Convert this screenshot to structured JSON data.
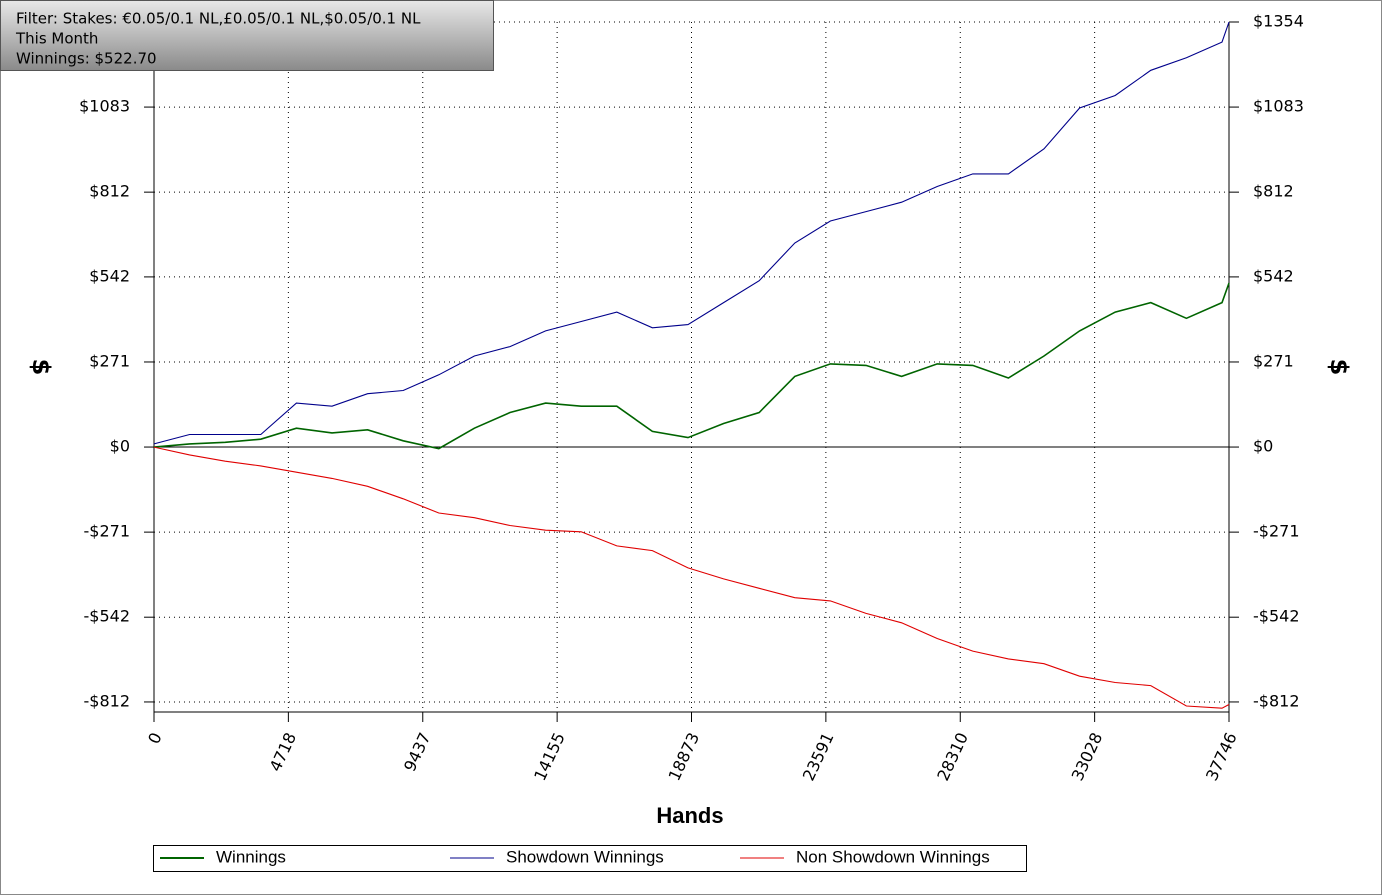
{
  "chart_data": {
    "type": "line",
    "annotations": [
      "Filter: Stakes: €0.05/0.1 NL,£0.05/0.1 NL,$0.05/0.1 NL",
      "This Month",
      "Winnings: $522.70"
    ],
    "xlabel": "Hands",
    "ylabel": "$",
    "x": [
      0,
      1250,
      2500,
      3750,
      5000,
      6250,
      7500,
      8750,
      10000,
      11250,
      12500,
      13750,
      15000,
      16250,
      17500,
      18750,
      20000,
      21250,
      22500,
      23750,
      25000,
      26250,
      27500,
      28750,
      30000,
      31250,
      32500,
      33750,
      35000,
      36250,
      37500,
      37746
    ],
    "series": [
      {
        "name": "Winnings",
        "color": "#006400",
        "values": [
          0,
          10,
          15,
          25,
          60,
          45,
          55,
          20,
          -5,
          60,
          110,
          140,
          130,
          130,
          50,
          30,
          75,
          110,
          225,
          265,
          260,
          225,
          265,
          260,
          220,
          290,
          370,
          430,
          460,
          410,
          460,
          522.7
        ]
      },
      {
        "name": "Showdown Winnings",
        "color": "#00008b",
        "values": [
          10,
          40,
          40,
          40,
          140,
          130,
          170,
          180,
          230,
          290,
          320,
          370,
          400,
          430,
          380,
          390,
          460,
          530,
          650,
          720,
          750,
          780,
          830,
          870,
          870,
          950,
          1080,
          1120,
          1200,
          1240,
          1290,
          1354
        ]
      },
      {
        "name": "Non Showdown Winnings",
        "color": "#e00000",
        "values": [
          0,
          -25,
          -45,
          -60,
          -80,
          -100,
          -125,
          -165,
          -210,
          -225,
          -250,
          -265,
          -270,
          -315,
          -330,
          -385,
          -420,
          -450,
          -480,
          -490,
          -530,
          -560,
          -610,
          -650,
          -675,
          -690,
          -730,
          -750,
          -760,
          -825,
          -832,
          -820
        ]
      }
    ],
    "xlim": [
      0,
      37746
    ],
    "xticks": [
      0,
      4718,
      9437,
      14155,
      18873,
      23591,
      28310,
      33028,
      37746
    ],
    "ylim": [
      -844,
      1354
    ],
    "yticks": [
      {
        "value": -812,
        "label": "-$812"
      },
      {
        "value": -542,
        "label": "-$542"
      },
      {
        "value": -271,
        "label": "-$271"
      },
      {
        "value": 0,
        "label": "$0"
      },
      {
        "value": 271,
        "label": "$271"
      },
      {
        "value": 542,
        "label": "$542"
      },
      {
        "value": 812,
        "label": "$812"
      },
      {
        "value": 1083,
        "label": "$1083"
      },
      {
        "value": 1354,
        "label": "$1354"
      }
    ],
    "grid": true
  }
}
